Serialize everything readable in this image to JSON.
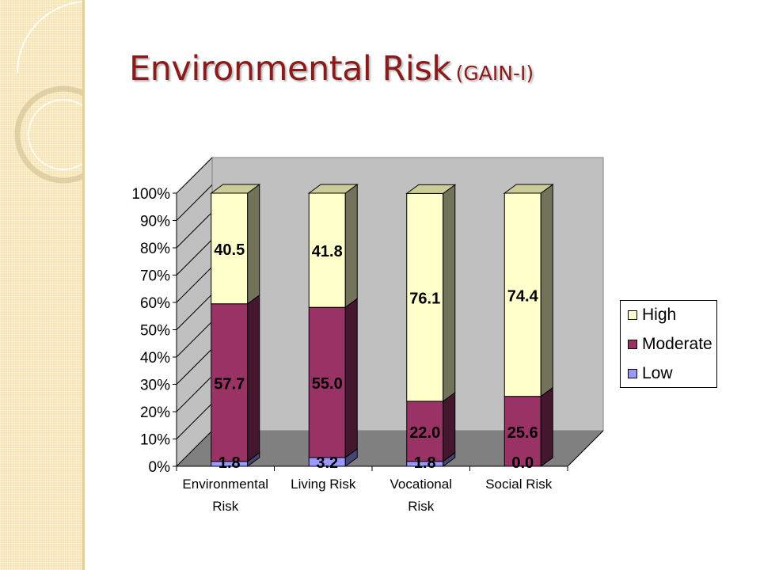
{
  "slide": {
    "title": "Environmental Risk",
    "title_suffix": "(GAIN-I)"
  },
  "chart_data": {
    "type": "bar",
    "stacked": true,
    "percent_stacked": true,
    "three_d": true,
    "categories": [
      "Environmental Risk",
      "Living Risk",
      "Vocational Risk",
      "Social Risk"
    ],
    "category_labels": [
      [
        "Environmental",
        "Risk"
      ],
      [
        "Living Risk"
      ],
      [
        "Vocational",
        "Risk"
      ],
      [
        "Social Risk"
      ]
    ],
    "series": [
      {
        "name": "Low",
        "values": [
          1.8,
          3.2,
          1.8,
          0.0
        ],
        "labels": [
          "1.8",
          "3.2",
          "1.8",
          "0.0"
        ],
        "color": "#9999ff"
      },
      {
        "name": "Moderate",
        "values": [
          57.7,
          55.0,
          22.0,
          25.6
        ],
        "labels": [
          "57.7",
          "55.0",
          "22.0",
          "25.6"
        ],
        "color": "#993366"
      },
      {
        "name": "High",
        "values": [
          40.5,
          41.8,
          76.1,
          74.4
        ],
        "labels": [
          "40.5",
          "41.8",
          "76.1",
          "74.4"
        ],
        "color": "#ffffcc"
      }
    ],
    "yticks": [
      "0%",
      "10%",
      "20%",
      "30%",
      "40%",
      "50%",
      "60%",
      "70%",
      "80%",
      "90%",
      "100%"
    ],
    "ylim": [
      0,
      100
    ],
    "grid": false,
    "legend_position": "right",
    "legend_order": [
      "High",
      "Moderate",
      "Low"
    ],
    "title": "",
    "xlabel": "",
    "ylabel": ""
  }
}
